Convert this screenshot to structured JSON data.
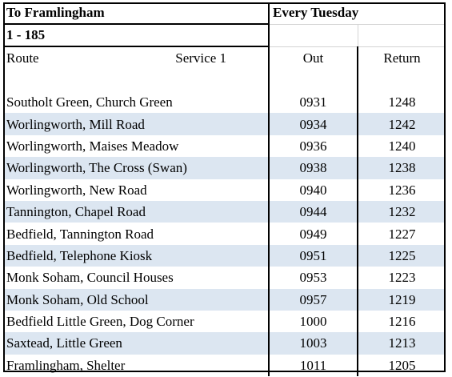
{
  "header": {
    "title": "To Framlingham",
    "frequency": "Every Tuesday",
    "route_number": "1  -  185"
  },
  "columns": {
    "route": "Route",
    "service": "Service 1",
    "out": "Out",
    "return": "Return"
  },
  "rows": [
    {
      "stop": "Southolt Green, Church Green",
      "out": "0931",
      "return": "1248"
    },
    {
      "stop": "Worlingworth, Mill Road",
      "out": "0934",
      "return": "1242"
    },
    {
      "stop": "Worlingworth, Maises Meadow",
      "out": "0936",
      "return": "1240"
    },
    {
      "stop": "Worlingworth, The Cross (Swan)",
      "out": "0938",
      "return": "1238"
    },
    {
      "stop": "Worlingworth, New Road",
      "out": "0940",
      "return": "1236"
    },
    {
      "stop": "Tannington, Chapel Road",
      "out": "0944",
      "return": "1232"
    },
    {
      "stop": "Bedfield, Tannington Road",
      "out": "0949",
      "return": "1227"
    },
    {
      "stop": "Bedfield, Telephone Kiosk",
      "out": "0951",
      "return": "1225"
    },
    {
      "stop": "Monk Soham, Council Houses",
      "out": "0953",
      "return": "1223"
    },
    {
      "stop": "Monk Soham, Old School",
      "out": "0957",
      "return": "1219"
    },
    {
      "stop": "Bedfield Little Green, Dog Corner",
      "out": "1000",
      "return": "1216"
    },
    {
      "stop": "Saxtead, Little Green",
      "out": "1003",
      "return": "1213"
    },
    {
      "stop": "Framlingham, Shelter",
      "out": "1011",
      "return": "1205"
    }
  ],
  "colors": {
    "row_shade": "#dce6f1",
    "border": "#000000"
  }
}
